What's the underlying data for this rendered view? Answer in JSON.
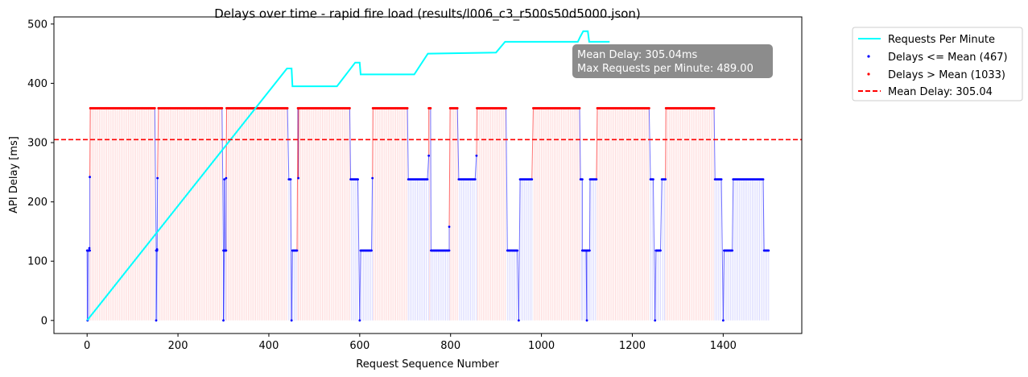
{
  "chart_data": {
    "type": "line",
    "title": "Delays over time - rapid fire load (results/l006_c3_r500s50d5000.json)",
    "xlabel": "Request Sequence Number",
    "ylabel": "API Delay [ms]",
    "xlim": [
      -73,
      1573
    ],
    "ylim": [
      -22,
      512
    ],
    "xticks": [
      0,
      200,
      400,
      600,
      800,
      1000,
      1200,
      1400
    ],
    "yticks": [
      0,
      100,
      200,
      300,
      400,
      500
    ],
    "grid": false,
    "legend_position": "outside-top-right",
    "colors": {
      "rpm": "#00ffff",
      "low": "#0000ff",
      "high": "#ff0000",
      "mean": "#ff0000",
      "low_fill": "#d9d9ff",
      "high_fill": "#ffd9d9",
      "stats_box": "#8c8c8c"
    },
    "mean_delay": 305.04,
    "stats_box": {
      "line1": "Mean Delay: 305.04ms",
      "line2": "Max Requests per Minute:  489.00"
    },
    "series": [
      {
        "name": "Requests Per Minute",
        "kind": "line",
        "points": [
          [
            0,
            0
          ],
          [
            440,
            425
          ],
          [
            450,
            425
          ],
          [
            452,
            395
          ],
          [
            550,
            395
          ],
          [
            590,
            435
          ],
          [
            600,
            435
          ],
          [
            602,
            415
          ],
          [
            720,
            415
          ],
          [
            750,
            450
          ],
          [
            900,
            452
          ],
          [
            920,
            470
          ],
          [
            940,
            470
          ],
          [
            1080,
            470
          ],
          [
            1085,
            478
          ],
          [
            1092,
            488
          ],
          [
            1102,
            488
          ],
          [
            1105,
            470
          ],
          [
            1150,
            470
          ]
        ]
      },
      {
        "name": "Delays <= Mean (467)",
        "kind": "scatter",
        "count": 467,
        "segments": [
          {
            "x0": 0,
            "x1": 6,
            "y": 118,
            "isolated": [
              [
                1,
                0
              ],
              [
                3,
                118
              ],
              [
                5,
                122
              ],
              [
                6,
                242
              ]
            ]
          },
          {
            "x0": 152,
            "x1": 155,
            "y": 118,
            "isolated": [
              [
                152,
                0
              ],
              [
                154,
                120
              ],
              [
                155,
                240
              ]
            ]
          },
          {
            "x0": 300,
            "x1": 306,
            "y": 118,
            "isolated": [
              [
                300,
                0
              ],
              [
                302,
                238
              ],
              [
                304,
                118
              ],
              [
                306,
                240
              ]
            ]
          },
          {
            "x0": 444,
            "x1": 448,
            "y": 238,
            "isolated": [
              [
                450,
                0
              ]
            ]
          },
          {
            "x0": 452,
            "x1": 462,
            "y": 118,
            "isolated": [
              [
                465,
                240
              ]
            ]
          },
          {
            "x0": 580,
            "x1": 596,
            "y": 238,
            "isolated": [
              [
                600,
                0
              ]
            ]
          },
          {
            "x0": 602,
            "x1": 626,
            "y": 118,
            "isolated": [
              [
                628,
                240
              ]
            ]
          },
          {
            "x0": 707,
            "x1": 750,
            "y": 238,
            "isolated": [
              [
                752,
                278
              ]
            ]
          },
          {
            "x0": 757,
            "x1": 797,
            "y": 118,
            "isolated": [
              [
                797,
                158
              ]
            ]
          },
          {
            "x0": 818,
            "x1": 855,
            "y": 238,
            "isolated": [
              [
                857,
                278
              ]
            ]
          },
          {
            "x0": 925,
            "x1": 947,
            "y": 118,
            "isolated": [
              [
                950,
                0
              ]
            ]
          },
          {
            "x0": 953,
            "x1": 980,
            "y": 238,
            "isolated": []
          },
          {
            "x0": 1086,
            "x1": 1090,
            "y": 238,
            "isolated": [
              [
                1100,
                0
              ]
            ]
          },
          {
            "x0": 1090,
            "x1": 1106,
            "y": 118,
            "isolated": []
          },
          {
            "x0": 1107,
            "x1": 1122,
            "y": 238,
            "isolated": []
          },
          {
            "x0": 1240,
            "x1": 1246,
            "y": 238,
            "isolated": [
              [
                1250,
                0
              ]
            ]
          },
          {
            "x0": 1252,
            "x1": 1262,
            "y": 118,
            "isolated": []
          },
          {
            "x0": 1265,
            "x1": 1273,
            "y": 238,
            "isolated": []
          },
          {
            "x0": 1382,
            "x1": 1397,
            "y": 238,
            "isolated": [
              [
                1400,
                0
              ]
            ]
          },
          {
            "x0": 1402,
            "x1": 1420,
            "y": 118,
            "isolated": []
          },
          {
            "x0": 1422,
            "x1": 1488,
            "y": 238,
            "isolated": []
          },
          {
            "x0": 1490,
            "x1": 1500,
            "y": 118,
            "isolated": []
          }
        ]
      },
      {
        "name": "Delays > Mean (1033)",
        "kind": "scatter",
        "count": 1033,
        "segments": [
          {
            "x0": 7,
            "x1": 150,
            "y": 358
          },
          {
            "x0": 157,
            "x1": 298,
            "y": 358
          },
          {
            "x0": 307,
            "x1": 442,
            "y": 358
          },
          {
            "x0": 464,
            "x1": 578,
            "y": 358
          },
          {
            "x0": 629,
            "x1": 705,
            "y": 358
          },
          {
            "x0": 752,
            "x1": 756,
            "y": 358
          },
          {
            "x0": 799,
            "x1": 816,
            "y": 358
          },
          {
            "x0": 858,
            "x1": 923,
            "y": 358
          },
          {
            "x0": 982,
            "x1": 1084,
            "y": 358
          },
          {
            "x0": 1123,
            "x1": 1238,
            "y": 358
          },
          {
            "x0": 1274,
            "x1": 1380,
            "y": 358
          }
        ]
      },
      {
        "name": "Mean Delay: 305.04",
        "kind": "hline",
        "y": 305.04
      }
    ]
  }
}
